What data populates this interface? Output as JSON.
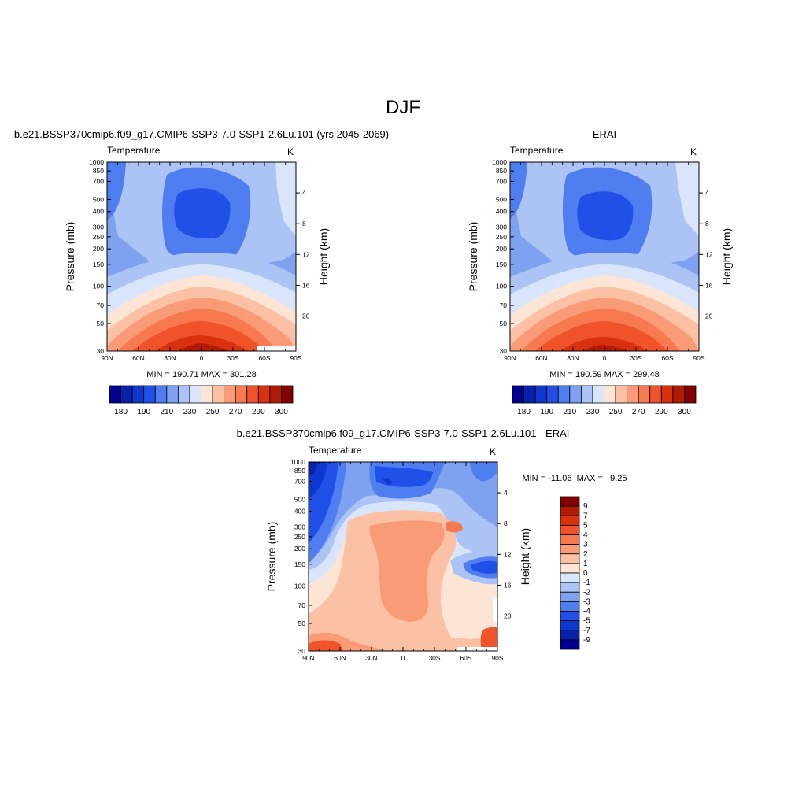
{
  "figure": {
    "title": "DJF"
  },
  "chart_data": [
    {
      "type": "heatmap",
      "id": "model",
      "title": "b.e21.BSSP370cmip6.f09_g17.CMIP6-SSP3-7.0-SSP1-2.6Lu.101 (yrs 2045-2069)",
      "variable": "Temperature",
      "units": "K",
      "ylabel": "Pressure (mb)",
      "ylabel_right": "Height (km)",
      "x_ticks": [
        "90N",
        "60N",
        "30N",
        "0",
        "30S",
        "60S",
        "90S"
      ],
      "y_ticks": [
        "30",
        "50",
        "70",
        "100",
        "150",
        "200",
        "250",
        "300",
        "400",
        "500",
        "700",
        "850",
        "1000"
      ],
      "height_ticks": [
        "4",
        "8",
        "12",
        "16",
        "20"
      ],
      "y_scale": "log",
      "ylim": [
        1000,
        30
      ],
      "xlim": [
        90,
        -90
      ],
      "stats": "MIN = 190.71  MAX = 301.28",
      "min": 190.71,
      "max": 301.28,
      "colorbar": {
        "orientation": "horizontal",
        "labels": [
          "180",
          "190",
          "210",
          "230",
          "250",
          "270",
          "290",
          "300"
        ],
        "colors": [
          "#00008f",
          "#0820aa",
          "#0c38d0",
          "#2050e8",
          "#4f7ef0",
          "#7ea1f0",
          "#abc3f5",
          "#d8e5fb",
          "#fde5d6",
          "#fcc0a4",
          "#fa9b77",
          "#f7794f",
          "#f05229",
          "#d9300e",
          "#b11a04",
          "#840000"
        ]
      }
    },
    {
      "type": "heatmap",
      "id": "obs",
      "title": "ERAI",
      "variable": "Temperature",
      "units": "K",
      "ylabel": "Pressure (mb)",
      "ylabel_right": "Height (km)",
      "x_ticks": [
        "90N",
        "60N",
        "30N",
        "0",
        "30S",
        "60S",
        "90S"
      ],
      "y_ticks": [
        "30",
        "50",
        "70",
        "100",
        "150",
        "200",
        "250",
        "300",
        "400",
        "500",
        "700",
        "850",
        "1000"
      ],
      "height_ticks": [
        "4",
        "8",
        "12",
        "16",
        "20"
      ],
      "y_scale": "log",
      "ylim": [
        1000,
        30
      ],
      "xlim": [
        90,
        -90
      ],
      "stats": "MIN = 190.59  MAX = 299.48",
      "min": 190.59,
      "max": 299.48,
      "colorbar": {
        "orientation": "horizontal",
        "labels": [
          "180",
          "190",
          "210",
          "230",
          "250",
          "270",
          "290",
          "300"
        ],
        "colors": [
          "#00008f",
          "#0820aa",
          "#0c38d0",
          "#2050e8",
          "#4f7ef0",
          "#7ea1f0",
          "#abc3f5",
          "#d8e5fb",
          "#fde5d6",
          "#fcc0a4",
          "#fa9b77",
          "#f7794f",
          "#f05229",
          "#d9300e",
          "#b11a04",
          "#840000"
        ]
      }
    },
    {
      "type": "heatmap",
      "id": "diff",
      "title": "b.e21.BSSP370cmip6.f09_g17.CMIP6-SSP3-7.0-SSP1-2.6Lu.101 - ERAI",
      "variable": "Temperature",
      "units": "K",
      "ylabel": "Pressure (mb)",
      "ylabel_right": "Height (km)",
      "x_ticks": [
        "90N",
        "60N",
        "30N",
        "0",
        "30S",
        "60S",
        "90S"
      ],
      "y_ticks": [
        "30",
        "50",
        "70",
        "100",
        "150",
        "200",
        "250",
        "300",
        "400",
        "500",
        "700",
        "850",
        "1000"
      ],
      "height_ticks": [
        "4",
        "8",
        "12",
        "16",
        "20"
      ],
      "y_scale": "log",
      "ylim": [
        1000,
        30
      ],
      "xlim": [
        90,
        -90
      ],
      "stats": "MIN = -11.06  MAX =   9.25",
      "min": -11.06,
      "max": 9.25,
      "colorbar": {
        "orientation": "vertical",
        "labels": [
          "9",
          "7",
          "5",
          "4",
          "3",
          "2",
          "1",
          "0",
          "-1",
          "-2",
          "-3",
          "-4",
          "-5",
          "-7",
          "-9"
        ],
        "colors": [
          "#840000",
          "#b11a04",
          "#d9300e",
          "#f05229",
          "#f7794f",
          "#fa9b77",
          "#fcc0a4",
          "#fde5d6",
          "#d8e5fb",
          "#abc3f5",
          "#7ea1f0",
          "#4f7ef0",
          "#2050e8",
          "#0c38d0",
          "#0820aa",
          "#00008f"
        ]
      }
    }
  ]
}
